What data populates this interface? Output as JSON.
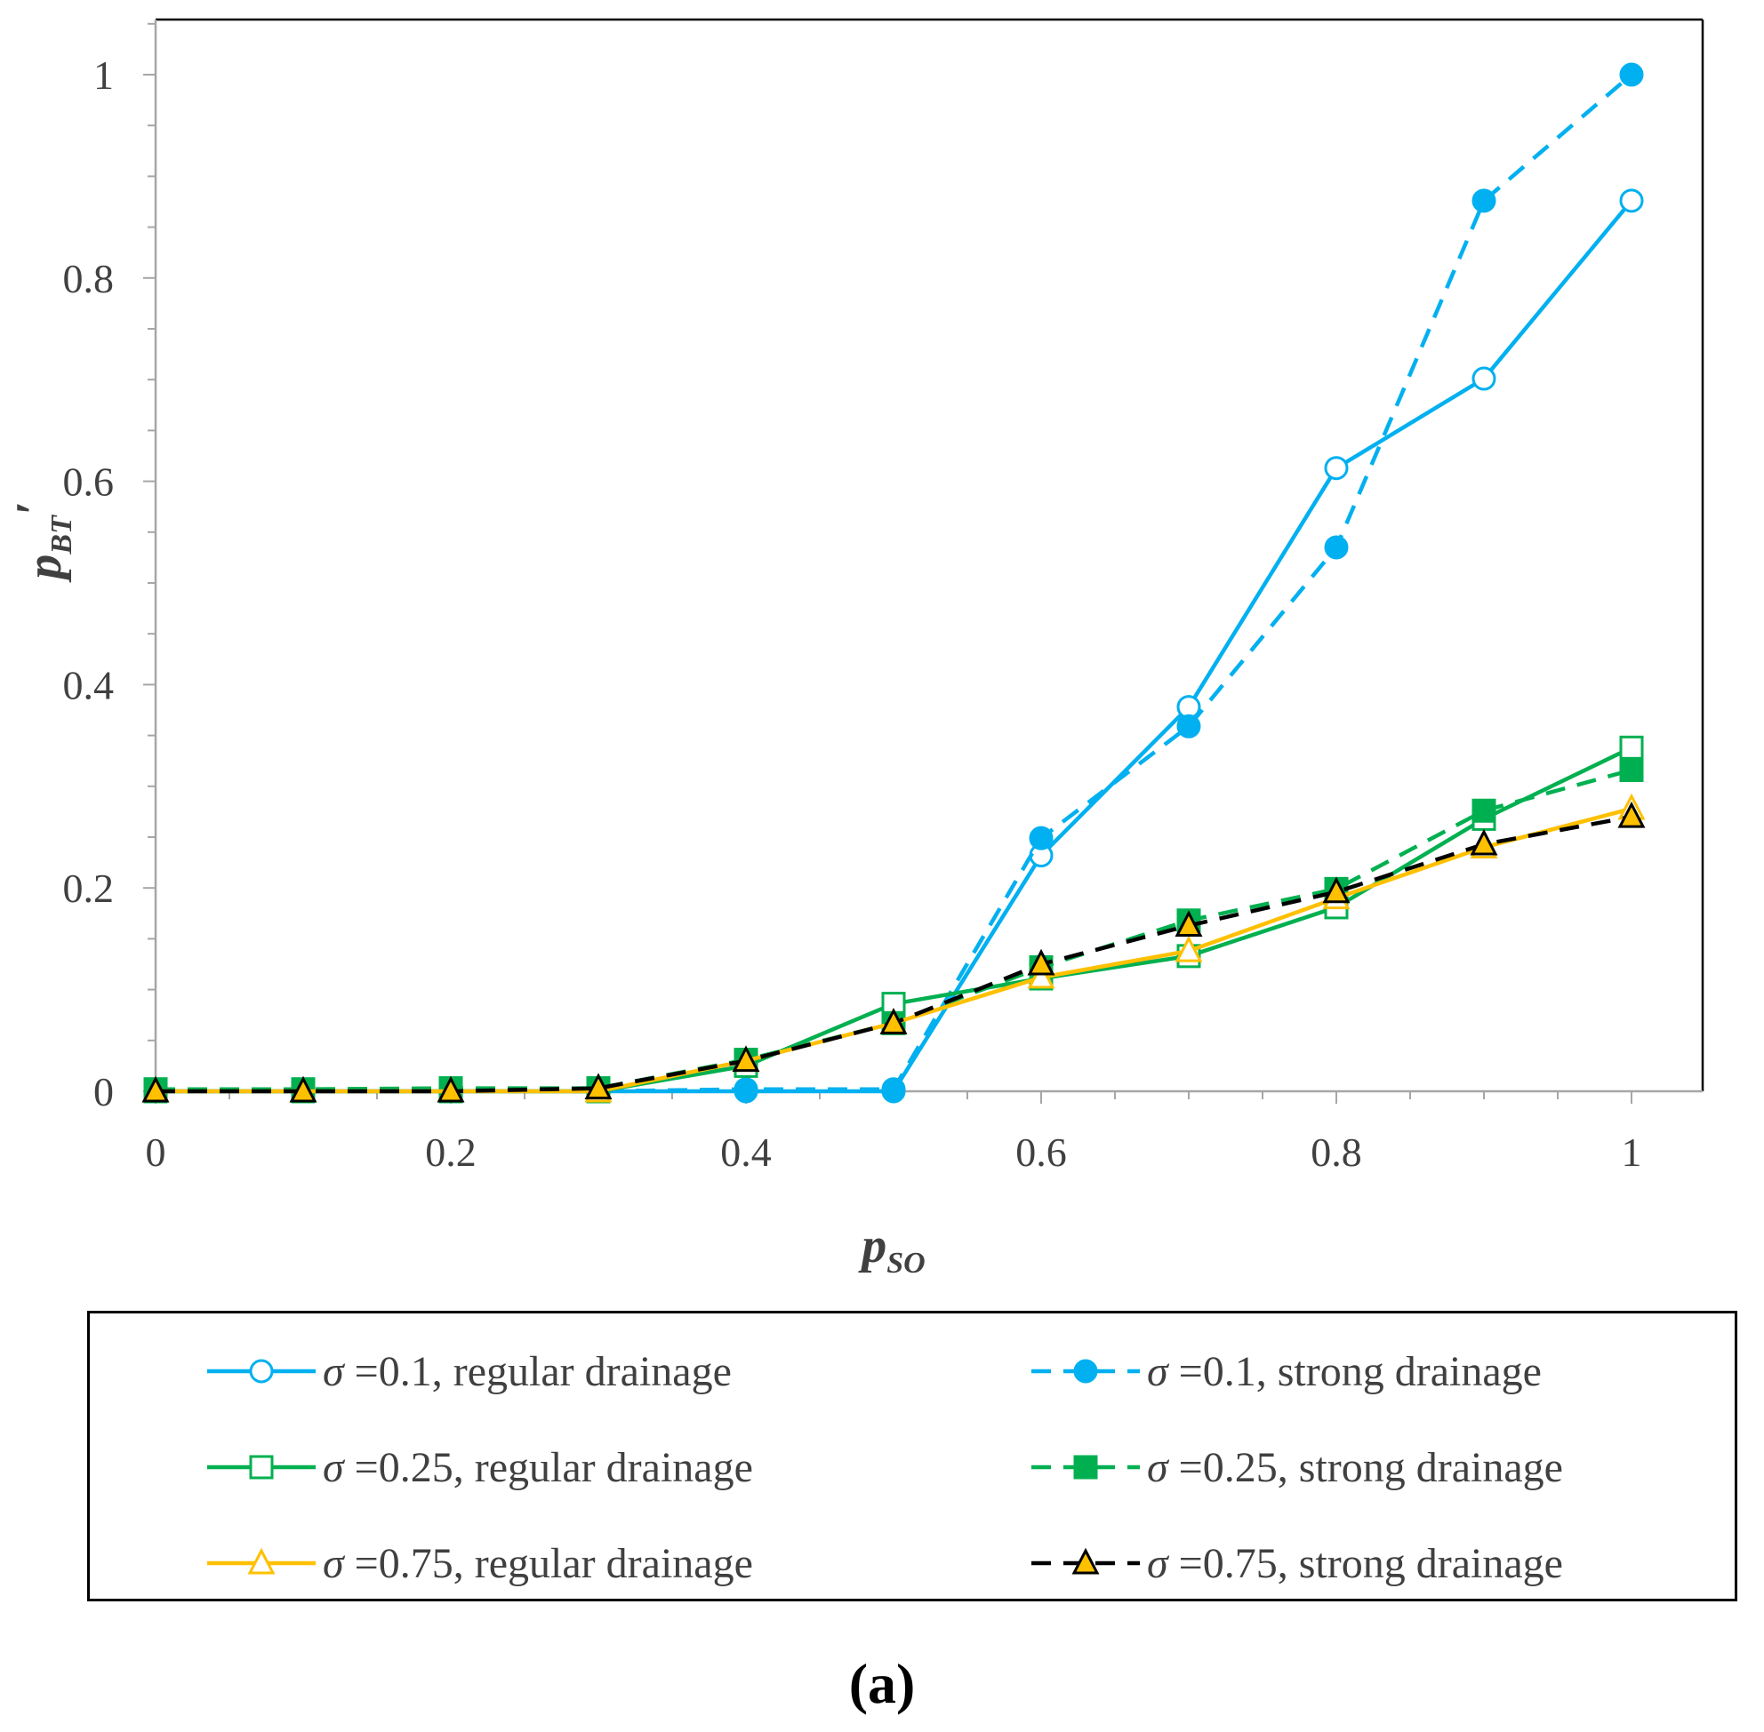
{
  "chart_data": {
    "type": "line",
    "xlabel": "p",
    "xlabel_sub": "SO",
    "ylabel": "p",
    "ylabel_sub": "BT",
    "ylabel_prime": "′",
    "xlim": [
      0,
      1.05
    ],
    "ylim": [
      0,
      1.05
    ],
    "x_ticks": [
      0,
      0.2,
      0.4,
      0.6,
      0.8,
      1
    ],
    "x_tick_labels": [
      "0",
      "0.2",
      "0.4",
      "0.6",
      "0.8",
      "1"
    ],
    "y_ticks": [
      0,
      0.2,
      0.4,
      0.6,
      0.8,
      1
    ],
    "y_tick_labels": [
      "0",
      "0.2",
      "0.4",
      "0.6",
      "0.8",
      "1"
    ],
    "x": [
      0,
      0.1,
      0.2,
      0.3,
      0.4,
      0.5,
      0.6,
      0.7,
      0.8,
      0.9,
      1.0
    ],
    "legend_position": "bottom",
    "panel_label": "(a)",
    "series": [
      {
        "name": "σ =0.1, regular drainage",
        "sigma": "σ",
        "rest": " =0.1, regular drainage",
        "color": "#00b0f0",
        "dash": "solid",
        "marker": "circle",
        "filled": false,
        "marker_fill": "#ffffff",
        "marker_stroke": "#00b0f0",
        "values": [
          0,
          0,
          0,
          0,
          0,
          0,
          0.232,
          0.378,
          0.613,
          0.701,
          0.876
        ]
      },
      {
        "name": "σ =0.1, strong drainage",
        "sigma": "σ",
        "rest": " =0.1, strong drainage",
        "color": "#00b0f0",
        "dash": "dashed",
        "marker": "circle",
        "filled": true,
        "marker_fill": "#00b0f0",
        "marker_stroke": "#00b0f0",
        "values": [
          0,
          0,
          0,
          0,
          0.002,
          0.002,
          0.249,
          0.359,
          0.535,
          0.876,
          1.0
        ]
      },
      {
        "name": "σ =0.25, regular drainage",
        "sigma": "σ",
        "rest": " =0.25, regular drainage",
        "color": "#00b050",
        "dash": "solid",
        "marker": "square",
        "filled": false,
        "marker_fill": "#ffffff",
        "marker_stroke": "#00b050",
        "values": [
          0,
          0,
          0,
          0,
          0.025,
          0.086,
          0.111,
          0.133,
          0.181,
          0.268,
          0.338
        ]
      },
      {
        "name": "σ =0.25, strong drainage",
        "sigma": "σ",
        "rest": " =0.25, strong drainage",
        "color": "#00b050",
        "dash": "dashed",
        "marker": "square",
        "filled": true,
        "marker_fill": "#00b050",
        "marker_stroke": "#00b050",
        "values": [
          0.002,
          0.002,
          0.003,
          0.003,
          0.031,
          0.067,
          0.122,
          0.168,
          0.199,
          0.276,
          0.316
        ]
      },
      {
        "name": "σ =0.75, regular drainage",
        "sigma": "σ",
        "rest": " =0.75, regular drainage",
        "color": "#ffc000",
        "dash": "solid",
        "marker": "triangle",
        "filled": false,
        "marker_fill": "#ffffff",
        "marker_stroke": "#ffc000",
        "values": [
          0,
          0,
          0,
          0,
          0.03,
          0.067,
          0.112,
          0.138,
          0.19,
          0.24,
          0.278
        ]
      },
      {
        "name": "σ =0.75, strong drainage",
        "sigma": "σ",
        "rest": " =0.75, strong drainage",
        "color": "#000000",
        "dash": "dashed",
        "marker": "triangle",
        "filled": true,
        "marker_fill": "#ffc000",
        "marker_stroke": "#000000",
        "values": [
          0,
          0,
          0,
          0.003,
          0.03,
          0.067,
          0.125,
          0.163,
          0.196,
          0.243,
          0.27
        ]
      }
    ]
  }
}
